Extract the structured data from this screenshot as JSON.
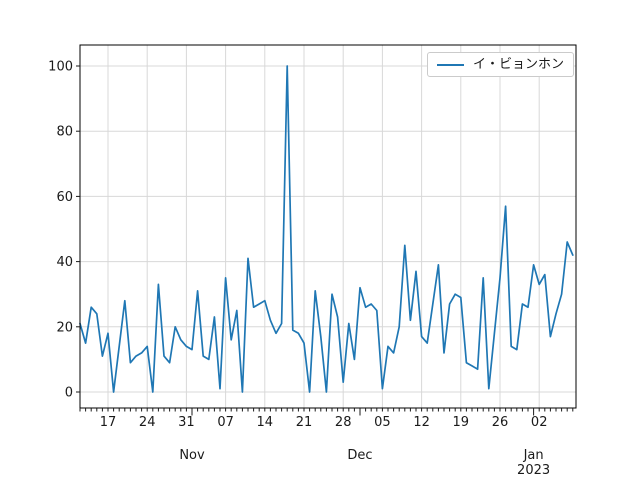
{
  "legend": {
    "label": "イ・ビョンホン"
  },
  "axes": {
    "y_tick_labels": [
      "0",
      "20",
      "40",
      "60",
      "80",
      "100"
    ],
    "y_ticks": [
      0,
      20,
      40,
      60,
      80,
      100
    ],
    "x_week_labels": [
      "17",
      "24",
      "31",
      "07",
      "14",
      "21",
      "28",
      "05",
      "12",
      "19",
      "26",
      "02"
    ],
    "x_week_days": [
      5,
      12,
      19,
      26,
      33,
      40,
      47,
      54,
      61,
      68,
      75,
      82
    ],
    "months": [
      {
        "label": "Nov",
        "day": 20,
        "year": ""
      },
      {
        "label": "Dec",
        "day": 50,
        "year": ""
      },
      {
        "label": "Jan",
        "day": 81,
        "year": "2023"
      }
    ]
  },
  "chart_data": {
    "type": "line",
    "title": "",
    "xlabel": "",
    "ylabel": "",
    "ylim": [
      -5,
      106
    ],
    "grid": true,
    "legend_position": "upper right",
    "x": [
      "2022-10-12",
      "2022-10-13",
      "2022-10-14",
      "2022-10-15",
      "2022-10-16",
      "2022-10-17",
      "2022-10-18",
      "2022-10-19",
      "2022-10-20",
      "2022-10-21",
      "2022-10-22",
      "2022-10-23",
      "2022-10-24",
      "2022-10-25",
      "2022-10-26",
      "2022-10-27",
      "2022-10-28",
      "2022-10-29",
      "2022-10-30",
      "2022-10-31",
      "2022-11-01",
      "2022-11-02",
      "2022-11-03",
      "2022-11-04",
      "2022-11-05",
      "2022-11-06",
      "2022-11-07",
      "2022-11-08",
      "2022-11-09",
      "2022-11-10",
      "2022-11-11",
      "2022-11-12",
      "2022-11-13",
      "2022-11-14",
      "2022-11-15",
      "2022-11-16",
      "2022-11-17",
      "2022-11-18",
      "2022-11-19",
      "2022-11-20",
      "2022-11-21",
      "2022-11-22",
      "2022-11-23",
      "2022-11-24",
      "2022-11-25",
      "2022-11-26",
      "2022-11-27",
      "2022-11-28",
      "2022-11-29",
      "2022-11-30",
      "2022-12-01",
      "2022-12-02",
      "2022-12-03",
      "2022-12-04",
      "2022-12-05",
      "2022-12-06",
      "2022-12-07",
      "2022-12-08",
      "2022-12-09",
      "2022-12-10",
      "2022-12-11",
      "2022-12-12",
      "2022-12-13",
      "2022-12-14",
      "2022-12-15",
      "2022-12-16",
      "2022-12-17",
      "2022-12-18",
      "2022-12-19",
      "2022-12-20",
      "2022-12-21",
      "2022-12-22",
      "2022-12-23",
      "2022-12-24",
      "2022-12-25",
      "2022-12-26",
      "2022-12-27",
      "2022-12-28",
      "2022-12-29",
      "2022-12-30",
      "2022-12-31",
      "2023-01-01",
      "2023-01-02",
      "2023-01-03",
      "2023-01-04",
      "2023-01-05",
      "2023-01-06",
      "2023-01-07",
      "2023-01-08"
    ],
    "series": [
      {
        "name": "イ・ビョンホン",
        "color": "#1f77b4",
        "values": [
          21,
          15,
          26,
          24,
          11,
          18,
          0,
          14,
          28,
          9,
          11,
          12,
          14,
          0,
          33,
          11,
          9,
          20,
          16,
          14,
          13,
          31,
          11,
          10,
          23,
          1,
          35,
          16,
          25,
          0,
          41,
          26,
          27,
          28,
          22,
          18,
          21,
          100,
          19,
          18,
          15,
          0,
          31,
          17,
          0,
          30,
          23,
          3,
          21,
          10,
          32,
          26,
          27,
          25,
          1,
          14,
          12,
          20,
          45,
          22,
          37,
          17,
          15,
          27,
          39,
          12,
          27,
          30,
          29,
          9,
          8,
          7,
          35,
          1,
          18,
          35,
          57,
          14,
          13,
          27,
          26,
          39,
          33,
          36,
          17,
          24,
          30,
          46,
          42
        ]
      }
    ]
  }
}
